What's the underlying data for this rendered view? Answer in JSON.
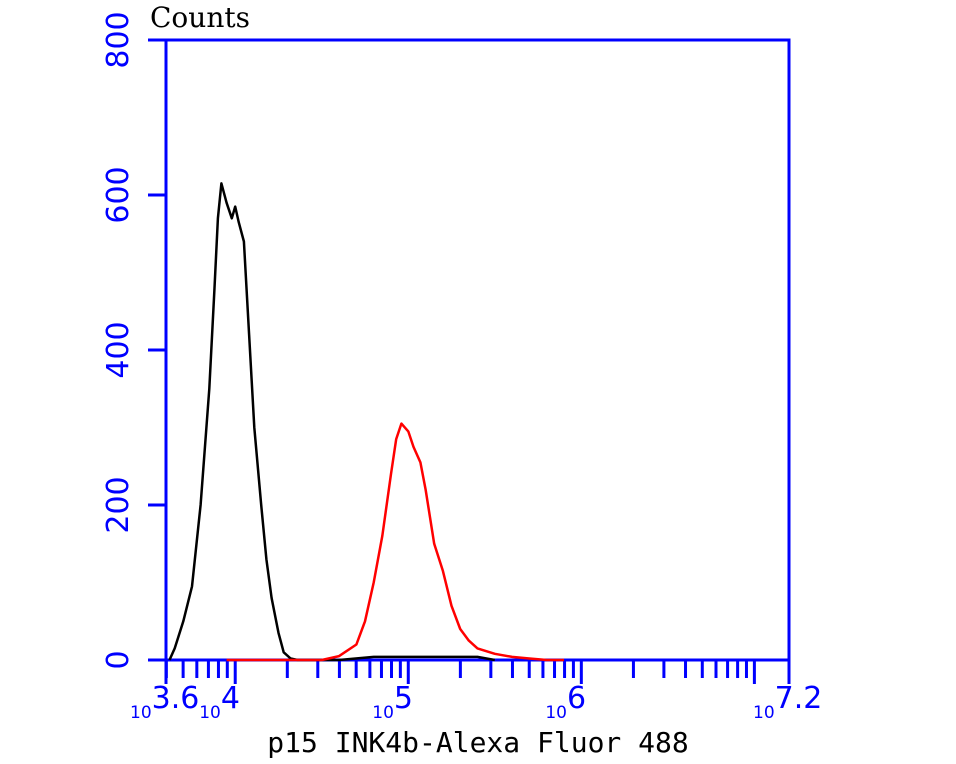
{
  "chart_data": {
    "type": "line",
    "title": "",
    "ylabel": "Counts",
    "xlabel": "p15 INK4b-Alexa Fluor 488",
    "x_scale": "log10",
    "xlim_log10": [
      3.6,
      7.2
    ],
    "ylim": [
      0,
      800
    ],
    "y_ticks": [
      0,
      200,
      400,
      600,
      800
    ],
    "x_tick_labels": [
      {
        "base": "10",
        "exp": "3.6",
        "log10": 3.6
      },
      {
        "base": "10",
        "exp": "4",
        "log10": 4
      },
      {
        "base": "10",
        "exp": "5",
        "log10": 5
      },
      {
        "base": "10",
        "exp": "6",
        "log10": 6
      },
      {
        "base": "10",
        "exp": "7.2",
        "log10": 7.2
      }
    ],
    "grid": false,
    "legend": false,
    "axis_color": "#0000ff",
    "series": [
      {
        "color": "#000000",
        "log10_x": [
          3.62,
          3.65,
          3.7,
          3.75,
          3.8,
          3.85,
          3.88,
          3.9,
          3.92,
          3.95,
          3.98,
          4.0,
          4.02,
          4.05,
          4.08,
          4.11,
          4.15,
          4.18,
          4.21,
          4.25,
          4.28,
          4.32,
          4.36,
          4.45,
          4.6,
          4.8,
          5.0,
          5.2,
          5.4,
          5.5
        ],
        "y": [
          0,
          15,
          50,
          95,
          200,
          350,
          480,
          570,
          615,
          590,
          570,
          585,
          565,
          540,
          420,
          300,
          200,
          130,
          80,
          35,
          10,
          2,
          0,
          0,
          0,
          4,
          4,
          4,
          4,
          0
        ]
      },
      {
        "color": "#ff0000",
        "log10_x": [
          3.95,
          4.2,
          4.5,
          4.6,
          4.7,
          4.75,
          4.8,
          4.85,
          4.9,
          4.93,
          4.96,
          5.0,
          5.03,
          5.07,
          5.1,
          5.15,
          5.2,
          5.25,
          5.3,
          5.35,
          5.4,
          5.5,
          5.6,
          5.7,
          5.8,
          5.9
        ],
        "y": [
          0,
          0,
          0,
          5,
          20,
          50,
          100,
          160,
          240,
          285,
          305,
          295,
          275,
          255,
          220,
          150,
          115,
          70,
          40,
          25,
          15,
          8,
          4,
          2,
          0,
          0
        ]
      }
    ]
  }
}
